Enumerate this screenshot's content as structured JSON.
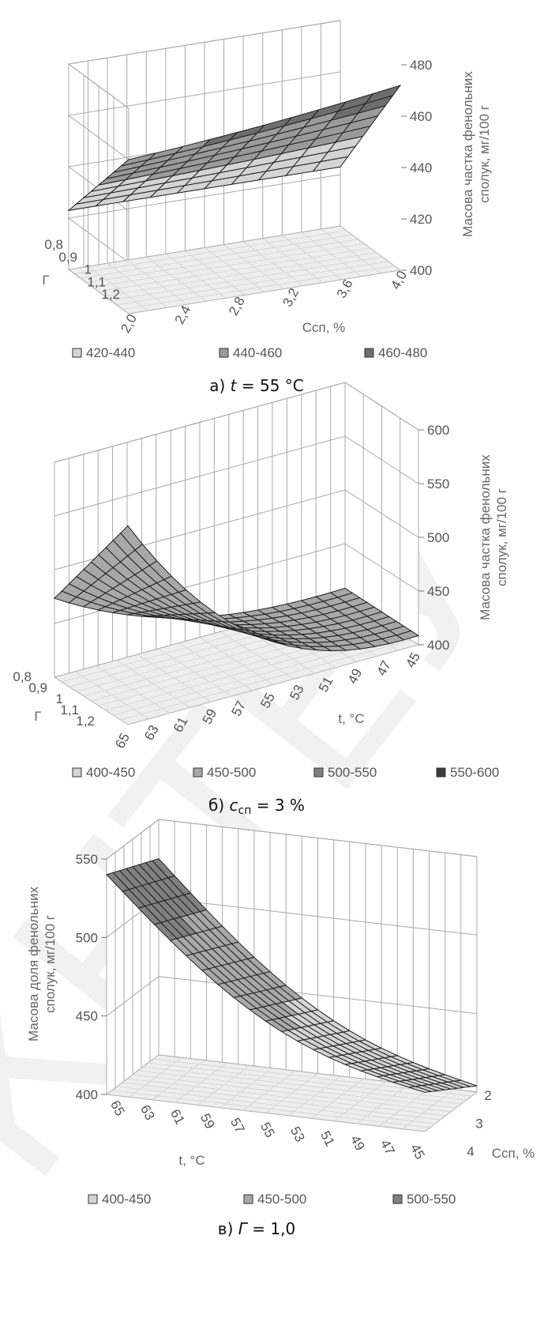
{
  "watermark": "КНТЕУ",
  "chart_data": [
    {
      "type": "surface3d",
      "caption": "а) t = 55 °C",
      "caption_prefix": "а) ",
      "caption_var": "t",
      "caption_rest": " = 55 °C",
      "zlabel_line1": "Масова частка фенольних",
      "zlabel_line2": "сполук, мг/100 г",
      "z_ticks": [
        "400",
        "420",
        "440",
        "460",
        "480"
      ],
      "zlim": [
        400,
        480
      ],
      "x_name": "Сcп, %",
      "x_ticks": [
        "2,0",
        "2,4",
        "2,8",
        "3,2",
        "3,6",
        "4,0"
      ],
      "y_name": "Г",
      "y_ticks": [
        "0,8",
        "0,9",
        "1",
        "1,1",
        "1,2"
      ],
      "legend": [
        "420-440",
        "440-460",
        "460-480"
      ],
      "legend_colors": [
        "#d4d4d4",
        "#9a9a9a",
        "#6e6e6e"
      ],
      "surface_corners": {
        "x_2.0_G_0.8": 460,
        "x_4.0_G_0.8": 468,
        "x_2.0_G_1.2": 423,
        "x_4.0_G_1.2": 423
      }
    },
    {
      "type": "surface3d",
      "caption_prefix": "б) ",
      "caption_var": "c",
      "caption_sub": "сп",
      "caption_rest": " = 3 %",
      "zlabel_line1": "Масова частка фенольних",
      "zlabel_line2": "сполук, мг/100 г",
      "z_ticks": [
        "400",
        "450",
        "500",
        "550",
        "600"
      ],
      "zlim": [
        400,
        600
      ],
      "x_name": "t, °C",
      "x_ticks": [
        "65",
        "63",
        "61",
        "59",
        "57",
        "55",
        "53",
        "51",
        "49",
        "47",
        "45"
      ],
      "y_name": "Г",
      "y_ticks": [
        "0,8",
        "0,9",
        "1",
        "1,1",
        "1,2"
      ],
      "legend": [
        "400-450",
        "450-500",
        "500-550",
        "550-600"
      ],
      "legend_colors": [
        "#d4d4d4",
        "#a8a8a8",
        "#808080",
        "#3c3c3c"
      ],
      "surface_corners": {
        "t_65_G_0.8": 545,
        "t_45_G_0.8": 412,
        "t_65_G_1.2": 445,
        "t_45_G_1.2": 410
      }
    },
    {
      "type": "surface3d",
      "caption_prefix": "в) ",
      "caption_var": "Г",
      "caption_rest": " = 1,0",
      "zlabel_line1": "Масова доля фенольних",
      "zlabel_line2": "сполук, мг/100 г",
      "z_ticks": [
        "400",
        "450",
        "500",
        "550"
      ],
      "zlim": [
        400,
        550
      ],
      "x_name": "t, °C",
      "x_ticks": [
        "65",
        "63",
        "61",
        "59",
        "57",
        "55",
        "53",
        "51",
        "49",
        "47",
        "45"
      ],
      "y_name": "Сcп, %",
      "y_ticks": [
        "2",
        "3",
        "4"
      ],
      "legend": [
        "400-450",
        "450-500",
        "500-550"
      ],
      "legend_colors": [
        "#d4d4d4",
        "#a8a8a8",
        "#808080"
      ],
      "surface_corners": {
        "t_65_C_4": 525,
        "t_45_C_4": 404,
        "t_65_C_2": 540,
        "t_45_C_2": 425
      }
    }
  ]
}
